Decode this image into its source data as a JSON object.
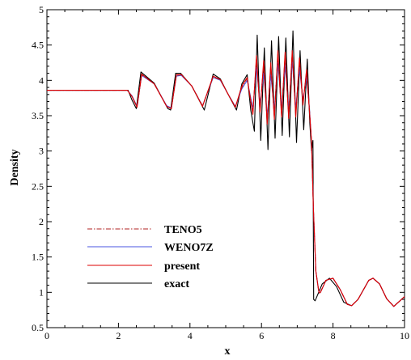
{
  "chart_data": {
    "type": "line",
    "title": "",
    "xlabel": "x",
    "ylabel": "Density",
    "xlim": [
      0,
      10
    ],
    "ylim": [
      0.5,
      5
    ],
    "x_ticks": [
      "0",
      "2",
      "4",
      "6",
      "8",
      "10"
    ],
    "y_ticks": [
      "0.5",
      "1",
      "1.5",
      "2",
      "2.5",
      "3",
      "3.5",
      "4",
      "4.5",
      "5"
    ],
    "grid": false,
    "legend_placement": "lower-left",
    "series": [
      {
        "name": "TENO5",
        "color": "#b22222",
        "dash": "dash-dot",
        "x": [
          0,
          2.25,
          2.38,
          2.52,
          2.65,
          3.0,
          3.35,
          3.48,
          3.62,
          3.76,
          4.05,
          4.35,
          4.65,
          4.85,
          5.05,
          5.27,
          5.45,
          5.6,
          5.68,
          5.76,
          5.86,
          5.96,
          6.06,
          6.16,
          6.26,
          6.36,
          6.46,
          6.56,
          6.66,
          6.76,
          6.86,
          6.96,
          7.06,
          7.16,
          7.26,
          7.34,
          7.4,
          7.45,
          7.52,
          7.6,
          7.62,
          7.65,
          7.8,
          8.0,
          8.2,
          8.4,
          8.52,
          8.7,
          9.0,
          9.12,
          9.3,
          9.5,
          9.7,
          10.0
        ],
        "y": [
          3.86,
          3.86,
          3.77,
          3.62,
          4.08,
          3.95,
          3.63,
          3.6,
          4.07,
          4.08,
          3.92,
          3.64,
          4.05,
          4.01,
          3.82,
          3.62,
          3.9,
          4.03,
          3.78,
          3.55,
          4.3,
          3.6,
          4.22,
          3.42,
          4.2,
          3.5,
          4.38,
          3.52,
          4.35,
          3.5,
          4.38,
          3.52,
          4.27,
          3.68,
          4.12,
          3.6,
          3.12,
          2.2,
          1.3,
          1.02,
          0.99,
          1.0,
          1.17,
          1.2,
          1.04,
          0.83,
          0.81,
          0.9,
          1.17,
          1.2,
          1.12,
          0.91,
          0.8,
          0.94
        ]
      },
      {
        "name": "WENO7Z",
        "color": "#4a55e0",
        "dash": "solid",
        "x": [
          0,
          2.25,
          2.38,
          2.52,
          2.65,
          3.0,
          3.35,
          3.48,
          3.62,
          3.76,
          4.05,
          4.35,
          4.65,
          4.85,
          5.05,
          5.27,
          5.45,
          5.6,
          5.68,
          5.76,
          5.86,
          5.96,
          6.06,
          6.16,
          6.26,
          6.36,
          6.46,
          6.56,
          6.66,
          6.76,
          6.86,
          6.96,
          7.06,
          7.16,
          7.26,
          7.34,
          7.4,
          7.45,
          7.52,
          7.6,
          7.62,
          7.65,
          7.8,
          8.0,
          8.2,
          8.4,
          8.52,
          8.7,
          9.0,
          9.12,
          9.3,
          9.5,
          9.7,
          10.0
        ],
        "y": [
          3.86,
          3.86,
          3.78,
          3.63,
          4.07,
          3.95,
          3.64,
          3.61,
          4.06,
          4.07,
          3.92,
          3.64,
          4.04,
          4.0,
          3.82,
          3.63,
          3.88,
          4.0,
          3.8,
          3.6,
          4.18,
          3.67,
          4.1,
          3.5,
          4.08,
          3.58,
          4.25,
          3.6,
          4.22,
          3.58,
          4.28,
          3.6,
          4.18,
          3.72,
          4.05,
          3.62,
          3.12,
          2.2,
          1.3,
          1.02,
          0.99,
          1.0,
          1.17,
          1.2,
          1.04,
          0.83,
          0.81,
          0.9,
          1.17,
          1.2,
          1.12,
          0.91,
          0.8,
          0.94
        ]
      },
      {
        "name": "present",
        "color": "#dd0000",
        "dash": "solid",
        "x": [
          0,
          2.25,
          2.38,
          2.52,
          2.65,
          3.0,
          3.35,
          3.48,
          3.62,
          3.76,
          4.05,
          4.35,
          4.65,
          4.85,
          5.05,
          5.27,
          5.45,
          5.6,
          5.68,
          5.76,
          5.86,
          5.96,
          6.06,
          6.16,
          6.26,
          6.36,
          6.46,
          6.56,
          6.66,
          6.76,
          6.86,
          6.96,
          7.06,
          7.16,
          7.26,
          7.34,
          7.4,
          7.45,
          7.52,
          7.6,
          7.62,
          7.65,
          7.8,
          8.0,
          8.2,
          8.4,
          8.52,
          8.7,
          9.0,
          9.12,
          9.3,
          9.5,
          9.7,
          10.0
        ],
        "y": [
          3.86,
          3.86,
          3.77,
          3.62,
          4.09,
          3.95,
          3.63,
          3.6,
          4.08,
          4.08,
          3.92,
          3.63,
          4.06,
          4.01,
          3.82,
          3.62,
          3.92,
          4.04,
          3.76,
          3.52,
          4.35,
          3.55,
          4.28,
          3.38,
          4.25,
          3.45,
          4.42,
          3.48,
          4.4,
          3.46,
          4.42,
          3.48,
          4.32,
          3.65,
          4.15,
          3.58,
          3.12,
          2.2,
          1.3,
          1.02,
          0.99,
          1.0,
          1.17,
          1.2,
          1.04,
          0.83,
          0.81,
          0.9,
          1.17,
          1.2,
          1.12,
          0.91,
          0.8,
          0.94
        ]
      },
      {
        "name": "exact",
        "color": "#000000",
        "dash": "solid",
        "x": [
          0,
          2.27,
          2.38,
          2.5,
          2.63,
          3.0,
          3.38,
          3.46,
          3.6,
          3.74,
          4.05,
          4.4,
          4.65,
          4.85,
          5.05,
          5.3,
          5.45,
          5.6,
          5.7,
          5.8,
          5.88,
          5.98,
          6.08,
          6.18,
          6.28,
          6.38,
          6.48,
          6.58,
          6.68,
          6.78,
          6.88,
          6.98,
          7.08,
          7.18,
          7.28,
          7.35,
          7.4,
          7.44,
          7.46,
          7.5,
          7.7,
          7.9,
          8.1,
          8.3,
          8.52,
          8.7,
          9.0,
          9.12,
          9.3,
          9.5,
          9.7,
          10.0
        ],
        "y": [
          3.86,
          3.86,
          3.72,
          3.6,
          4.12,
          3.96,
          3.6,
          3.58,
          4.1,
          4.1,
          3.92,
          3.58,
          4.09,
          4.02,
          3.82,
          3.58,
          3.95,
          4.08,
          3.58,
          3.28,
          4.64,
          3.15,
          4.46,
          3.02,
          4.56,
          3.18,
          4.62,
          3.22,
          4.6,
          3.2,
          4.7,
          3.12,
          4.42,
          3.3,
          4.3,
          3.4,
          3.0,
          3.15,
          0.9,
          0.88,
          1.12,
          1.2,
          1.08,
          0.86,
          0.81,
          0.9,
          1.17,
          1.2,
          1.12,
          0.91,
          0.8,
          0.94
        ]
      }
    ]
  }
}
